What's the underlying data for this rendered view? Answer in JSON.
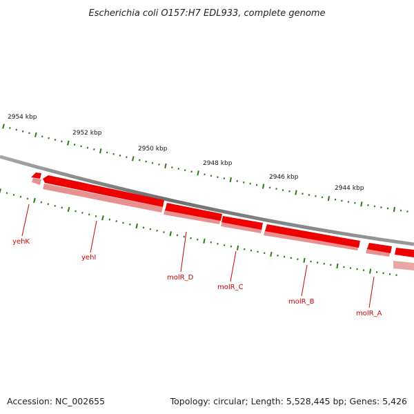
{
  "title": "Escherichia coli O157:H7 EDL933, complete genome",
  "footer": {
    "accession": "Accession: NC_002655",
    "summary": "Topology: circular; Length: 5,528,445 bp; Genes: 5,426"
  },
  "scale_labels": [
    "2954 kbp",
    "2952 kbp",
    "2950 kbp",
    "2948 kbp",
    "2946 kbp",
    "2944 kbp"
  ],
  "genes": [
    {
      "name": "yehK"
    },
    {
      "name": "yehI"
    },
    {
      "name": "molR_D"
    },
    {
      "name": "molR_C"
    },
    {
      "name": "molR_B"
    },
    {
      "name": "molR_A"
    }
  ],
  "colors": {
    "backbone": "#777777",
    "gene_fill": "#ee0000",
    "gene_shadow": "#e89090",
    "tick": "#2a7a12",
    "label": "#cc0000"
  }
}
